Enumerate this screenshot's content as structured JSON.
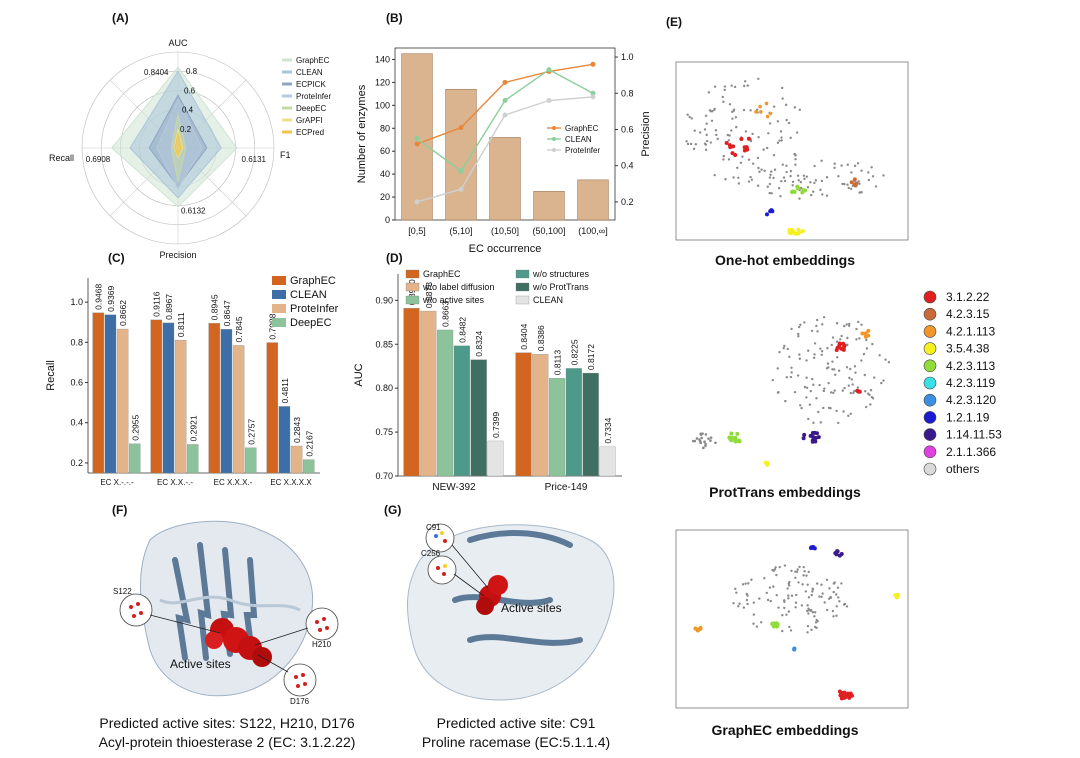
{
  "panel_labels": [
    "(A)",
    "(B)",
    "(C)",
    "(D)",
    "(E)",
    "(F)",
    "(G)"
  ],
  "chart_data": [
    {
      "panel": "(A)",
      "type": "radar",
      "axes": [
        "AUC",
        "F1",
        "Precision",
        "Recall"
      ],
      "rlim": [
        0,
        1
      ],
      "radial_ticks": [
        "0.2",
        "0.4",
        "0.6",
        "0.8"
      ],
      "value_labels": {
        "AUC": "0.8404",
        "F1": "0.6131",
        "Precision": "0.6132",
        "Recall": "0.6908"
      },
      "series": [
        {
          "name": "GraphEC",
          "values": [
            0.8404,
            0.6131,
            0.6132,
            0.6908
          ],
          "color": "#cfe3d3"
        },
        {
          "name": "CLEAN",
          "values": [
            0.8,
            0.45,
            0.52,
            0.5
          ],
          "color": "#a9c6d9"
        },
        {
          "name": "ECPICK",
          "values": [
            0.55,
            0.3,
            0.4,
            0.3
          ],
          "color": "#8fa5c3"
        },
        {
          "name": "ProteInfer",
          "values": [
            0.5,
            0.25,
            0.42,
            0.22
          ],
          "color": "#b7c9dc"
        },
        {
          "name": "DeepEC",
          "values": [
            0.35,
            0.08,
            0.35,
            0.07
          ],
          "color": "#c6d8a8"
        },
        {
          "name": "GrAPFI",
          "values": [
            0.2,
            0.05,
            0.1,
            0.04
          ],
          "color": "#e8e08a"
        },
        {
          "name": "ECPred",
          "values": [
            0.15,
            0.03,
            0.08,
            0.03
          ],
          "color": "#f2c44f"
        }
      ],
      "legend_position": "right"
    },
    {
      "panel": "(B)",
      "type": "bar+line",
      "categories": [
        "[0,5]",
        "(5,10]",
        "(10,50]",
        "(50,100]",
        "(100,∞]"
      ],
      "bars": {
        "name": "Number of enzymes",
        "values": [
          145,
          114,
          72,
          25,
          35
        ],
        "color": "#d9b48f"
      },
      "series": [
        {
          "name": "GraphEC",
          "values": [
            0.52,
            0.61,
            0.86,
            0.92,
            0.96
          ],
          "color": "#e8873a"
        },
        {
          "name": "CLEAN",
          "values": [
            0.55,
            0.37,
            0.76,
            0.93,
            0.8
          ],
          "color": "#8ccf9a"
        },
        {
          "name": "ProteInfer",
          "values": [
            0.2,
            0.27,
            0.68,
            0.76,
            0.78
          ],
          "color": "#cfcfcf"
        }
      ],
      "xlabel": "EC occurrence",
      "ylabel": "Number of enzymes",
      "y2label": "Precision",
      "ylim": [
        0,
        150
      ],
      "y2lim": [
        0.1,
        1.05
      ],
      "yticks": [
        "0",
        "20",
        "40",
        "60",
        "80",
        "100",
        "120",
        "140"
      ],
      "y2ticks": [
        "0.2",
        "0.4",
        "0.6",
        "0.8",
        "1.0"
      ],
      "legend_position": "right"
    },
    {
      "panel": "(C)",
      "type": "bar",
      "categories": [
        "EC X.-.-.-",
        "EC X.X.-.-",
        "EC X.X.X.-",
        "EC X.X.X.X"
      ],
      "series": [
        {
          "name": "GraphEC",
          "values": [
            0.9468,
            0.9116,
            0.8945,
            0.7988
          ],
          "labels": [
            "0.9468",
            "0.9116",
            "0.8945",
            "0.7988"
          ],
          "color": "#d2651f"
        },
        {
          "name": "CLEAN",
          "values": [
            0.9369,
            0.8967,
            0.8647,
            0.4811
          ],
          "labels": [
            "0.9369",
            "0.8967",
            "0.8647",
            "0.4811"
          ],
          "color": "#3d6fa6"
        },
        {
          "name": "ProteInfer",
          "values": [
            0.8662,
            0.8111,
            0.7845,
            0.2843
          ],
          "labels": [
            "0.8662",
            "0.8111",
            "0.7845",
            "0.2843"
          ],
          "color": "#e3b48a"
        },
        {
          "name": "DeepEC",
          "values": [
            0.2955,
            0.2921,
            0.2757,
            0.2167
          ],
          "labels": [
            "0.2955",
            "0.2921",
            "0.2757",
            "0.2167"
          ],
          "color": "#8cc39a"
        }
      ],
      "ylabel": "Recall",
      "ylim": [
        0.15,
        1.12
      ],
      "yticks": [
        "0.2",
        "0.4",
        "0.6",
        "0.8",
        "1.0"
      ],
      "legend_position": "top-right"
    },
    {
      "panel": "(D)",
      "type": "bar",
      "categories": [
        "NEW-392",
        "Price-149"
      ],
      "series": [
        {
          "name": "GraphEC",
          "values": [
            0.891,
            0.8404
          ],
          "labels": [
            "0.8910",
            "0.8404"
          ],
          "color": "#d2651f"
        },
        {
          "name": "w/o label diffusion",
          "values": [
            0.8878,
            0.8386
          ],
          "labels": [
            "0.8878",
            "0.8386"
          ],
          "color": "#e3b48a"
        },
        {
          "name": "w/o active sites",
          "values": [
            0.8663,
            0.8113
          ],
          "labels": [
            "0.8663",
            "0.8113"
          ],
          "color": "#8cc39a"
        },
        {
          "name": "w/o structures",
          "values": [
            0.8482,
            0.8225
          ],
          "labels": [
            "0.8482",
            "0.8225"
          ],
          "color": "#4e9a8a"
        },
        {
          "name": "w/o ProtTrans",
          "values": [
            0.8324,
            0.8172
          ],
          "labels": [
            "0.8324",
            "0.8172"
          ],
          "color": "#3f6e62"
        },
        {
          "name": "CLEAN",
          "values": [
            0.7399,
            0.7334
          ],
          "labels": [
            "0.7399",
            "0.7334"
          ],
          "color": "#e4e4e4"
        }
      ],
      "ylabel": "AUC",
      "ylim": [
        0.7,
        0.93
      ],
      "yticks": [
        "0.70",
        "0.75",
        "0.80",
        "0.85",
        "0.90"
      ],
      "legend_position": "top"
    }
  ],
  "panel_E": {
    "captions": [
      "One-hot embeddings",
      "ProtTrans embeddings",
      "GraphEC embeddings"
    ],
    "legend": [
      {
        "label": "3.1.2.22",
        "color": "#e02020"
      },
      {
        "label": "4.2.3.15",
        "color": "#c86a3a"
      },
      {
        "label": "4.2.1.113",
        "color": "#f0962a"
      },
      {
        "label": "3.5.4.38",
        "color": "#f5f020"
      },
      {
        "label": "4.2.3.113",
        "color": "#8fdc3a"
      },
      {
        "label": "4.2.3.119",
        "color": "#3ae0e8"
      },
      {
        "label": "4.2.3.120",
        "color": "#3a8fe0"
      },
      {
        "label": "1.2.1.19",
        "color": "#1a1ad0"
      },
      {
        "label": "1.14.11.53",
        "color": "#3a1a8a"
      },
      {
        "label": "2.1.1.366",
        "color": "#e040e0"
      },
      {
        "label": "others",
        "color": "#d9d9d9"
      }
    ]
  },
  "panel_F": {
    "residues": [
      "S122",
      "H210",
      "D176"
    ],
    "annotation": "Active sites",
    "caption_line1": "Predicted active sites: S122, H210, D176",
    "caption_line2": "Acyl-protein thioesterase 2 (EC: 3.1.2.22)"
  },
  "panel_G": {
    "residues": [
      "C91",
      "C256"
    ],
    "annotation": "Active sites",
    "caption_line1": "Predicted active site: C91",
    "caption_line2": "Proline racemase (EC:5.1.1.4)"
  }
}
